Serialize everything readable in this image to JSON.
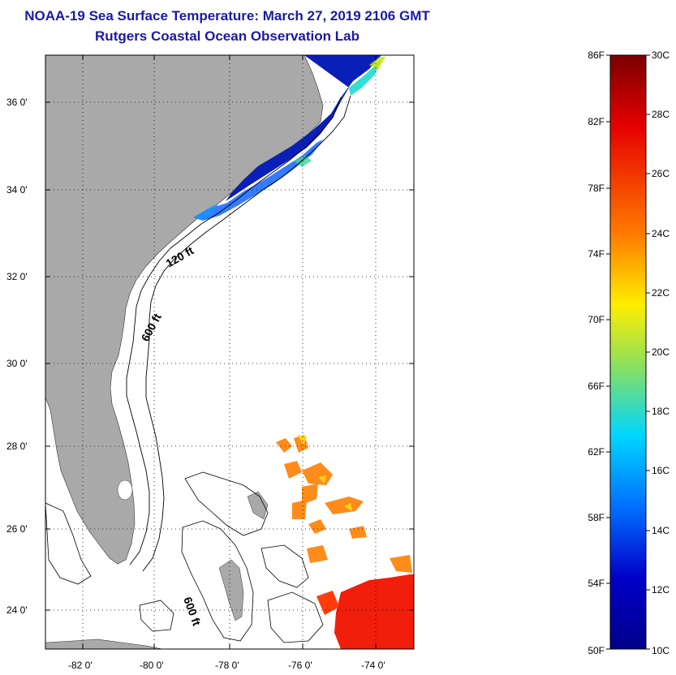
{
  "title": {
    "line1": "NOAA-19 Sea Surface Temperature:  March 27, 2019 2106 GMT",
    "line2": "Rutgers Coastal Ocean Observation Lab"
  },
  "map": {
    "lat_labels": [
      "36 0'",
      "34 0'",
      "32 0'",
      "30 0'",
      "28 0'",
      "26 0'",
      "24 0'"
    ],
    "lon_labels": [
      "-82 0'",
      "-80 0'",
      "-78 0'",
      "-76 0'",
      "-74 0'"
    ],
    "contour_labels": [
      "120 ft",
      "600 ft",
      "600 ft"
    ],
    "colors": {
      "land": "#a9a9a9",
      "ocean": "#ffffff"
    }
  },
  "colorbar": {
    "f_labels": [
      "86F",
      "82F",
      "78F",
      "74F",
      "70F",
      "66F",
      "62F",
      "58F",
      "54F",
      "50F"
    ],
    "c_labels": [
      "30C",
      "28C",
      "26C",
      "24C",
      "22C",
      "20C",
      "18C",
      "16C",
      "14C",
      "12C",
      "10C"
    ],
    "range_c": [
      10,
      30
    ],
    "gradient": [
      "#7a0000",
      "#e60000",
      "#ff7a00",
      "#ffee00",
      "#8fe05a",
      "#00d6ff",
      "#0070ff",
      "#0000c8",
      "#00008a"
    ]
  }
}
